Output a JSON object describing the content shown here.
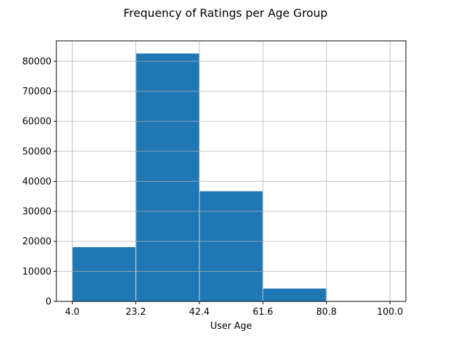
{
  "chart_data": {
    "type": "bar",
    "title": "Frequency of Ratings per Age Group",
    "xlabel": "User Age",
    "ylabel": "",
    "bin_edges": [
      4.0,
      23.2,
      42.4,
      61.6,
      80.8,
      100.0
    ],
    "values": [
      18200,
      82700,
      36800,
      4400,
      200
    ],
    "xtick_labels": [
      "4.0",
      "23.2",
      "42.4",
      "61.6",
      "80.8",
      "100.0"
    ],
    "yticks": [
      0,
      10000,
      20000,
      30000,
      40000,
      50000,
      60000,
      70000,
      80000
    ],
    "ylim": [
      0,
      86800
    ],
    "xlim": [
      -0.8,
      104.8
    ],
    "grid": true,
    "bar_color": "#1f77b4",
    "bar_edge_color": "#ffffff",
    "grid_color": "#b0b0b0"
  }
}
